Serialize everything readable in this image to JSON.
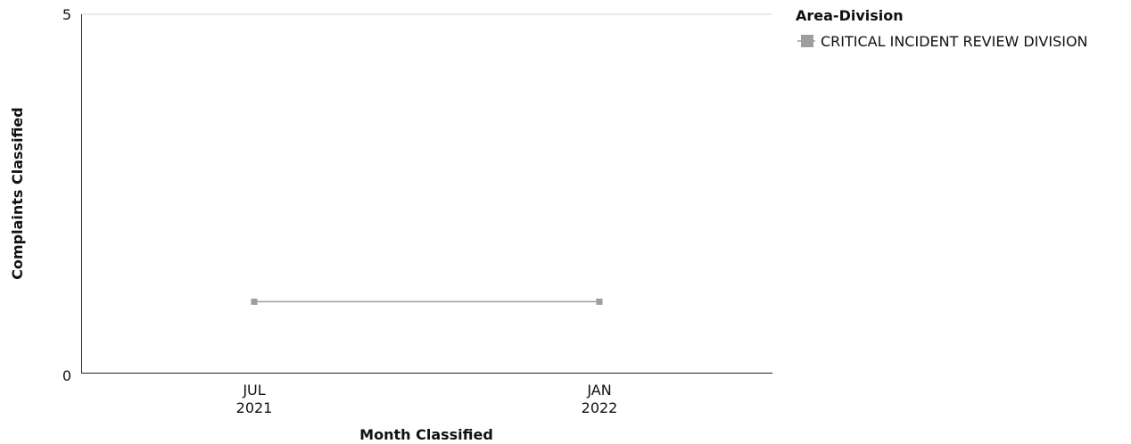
{
  "chart_data": {
    "type": "line",
    "xlabel": "Month Classified",
    "ylabel": "Complaints Classified",
    "ylim": [
      0,
      5
    ],
    "y_ticks": [
      "0",
      "5"
    ],
    "categories": [
      {
        "line1": "JUL",
        "line2": "2021"
      },
      {
        "line1": "JAN",
        "line2": "2022"
      }
    ],
    "legend": {
      "title": "Area-Division",
      "placement": "top-right"
    },
    "series": [
      {
        "name": "CRITICAL INCIDENT REVIEW DIVISION",
        "color": "#9e9e9e",
        "values": [
          1,
          1
        ]
      }
    ],
    "grid": false
  }
}
